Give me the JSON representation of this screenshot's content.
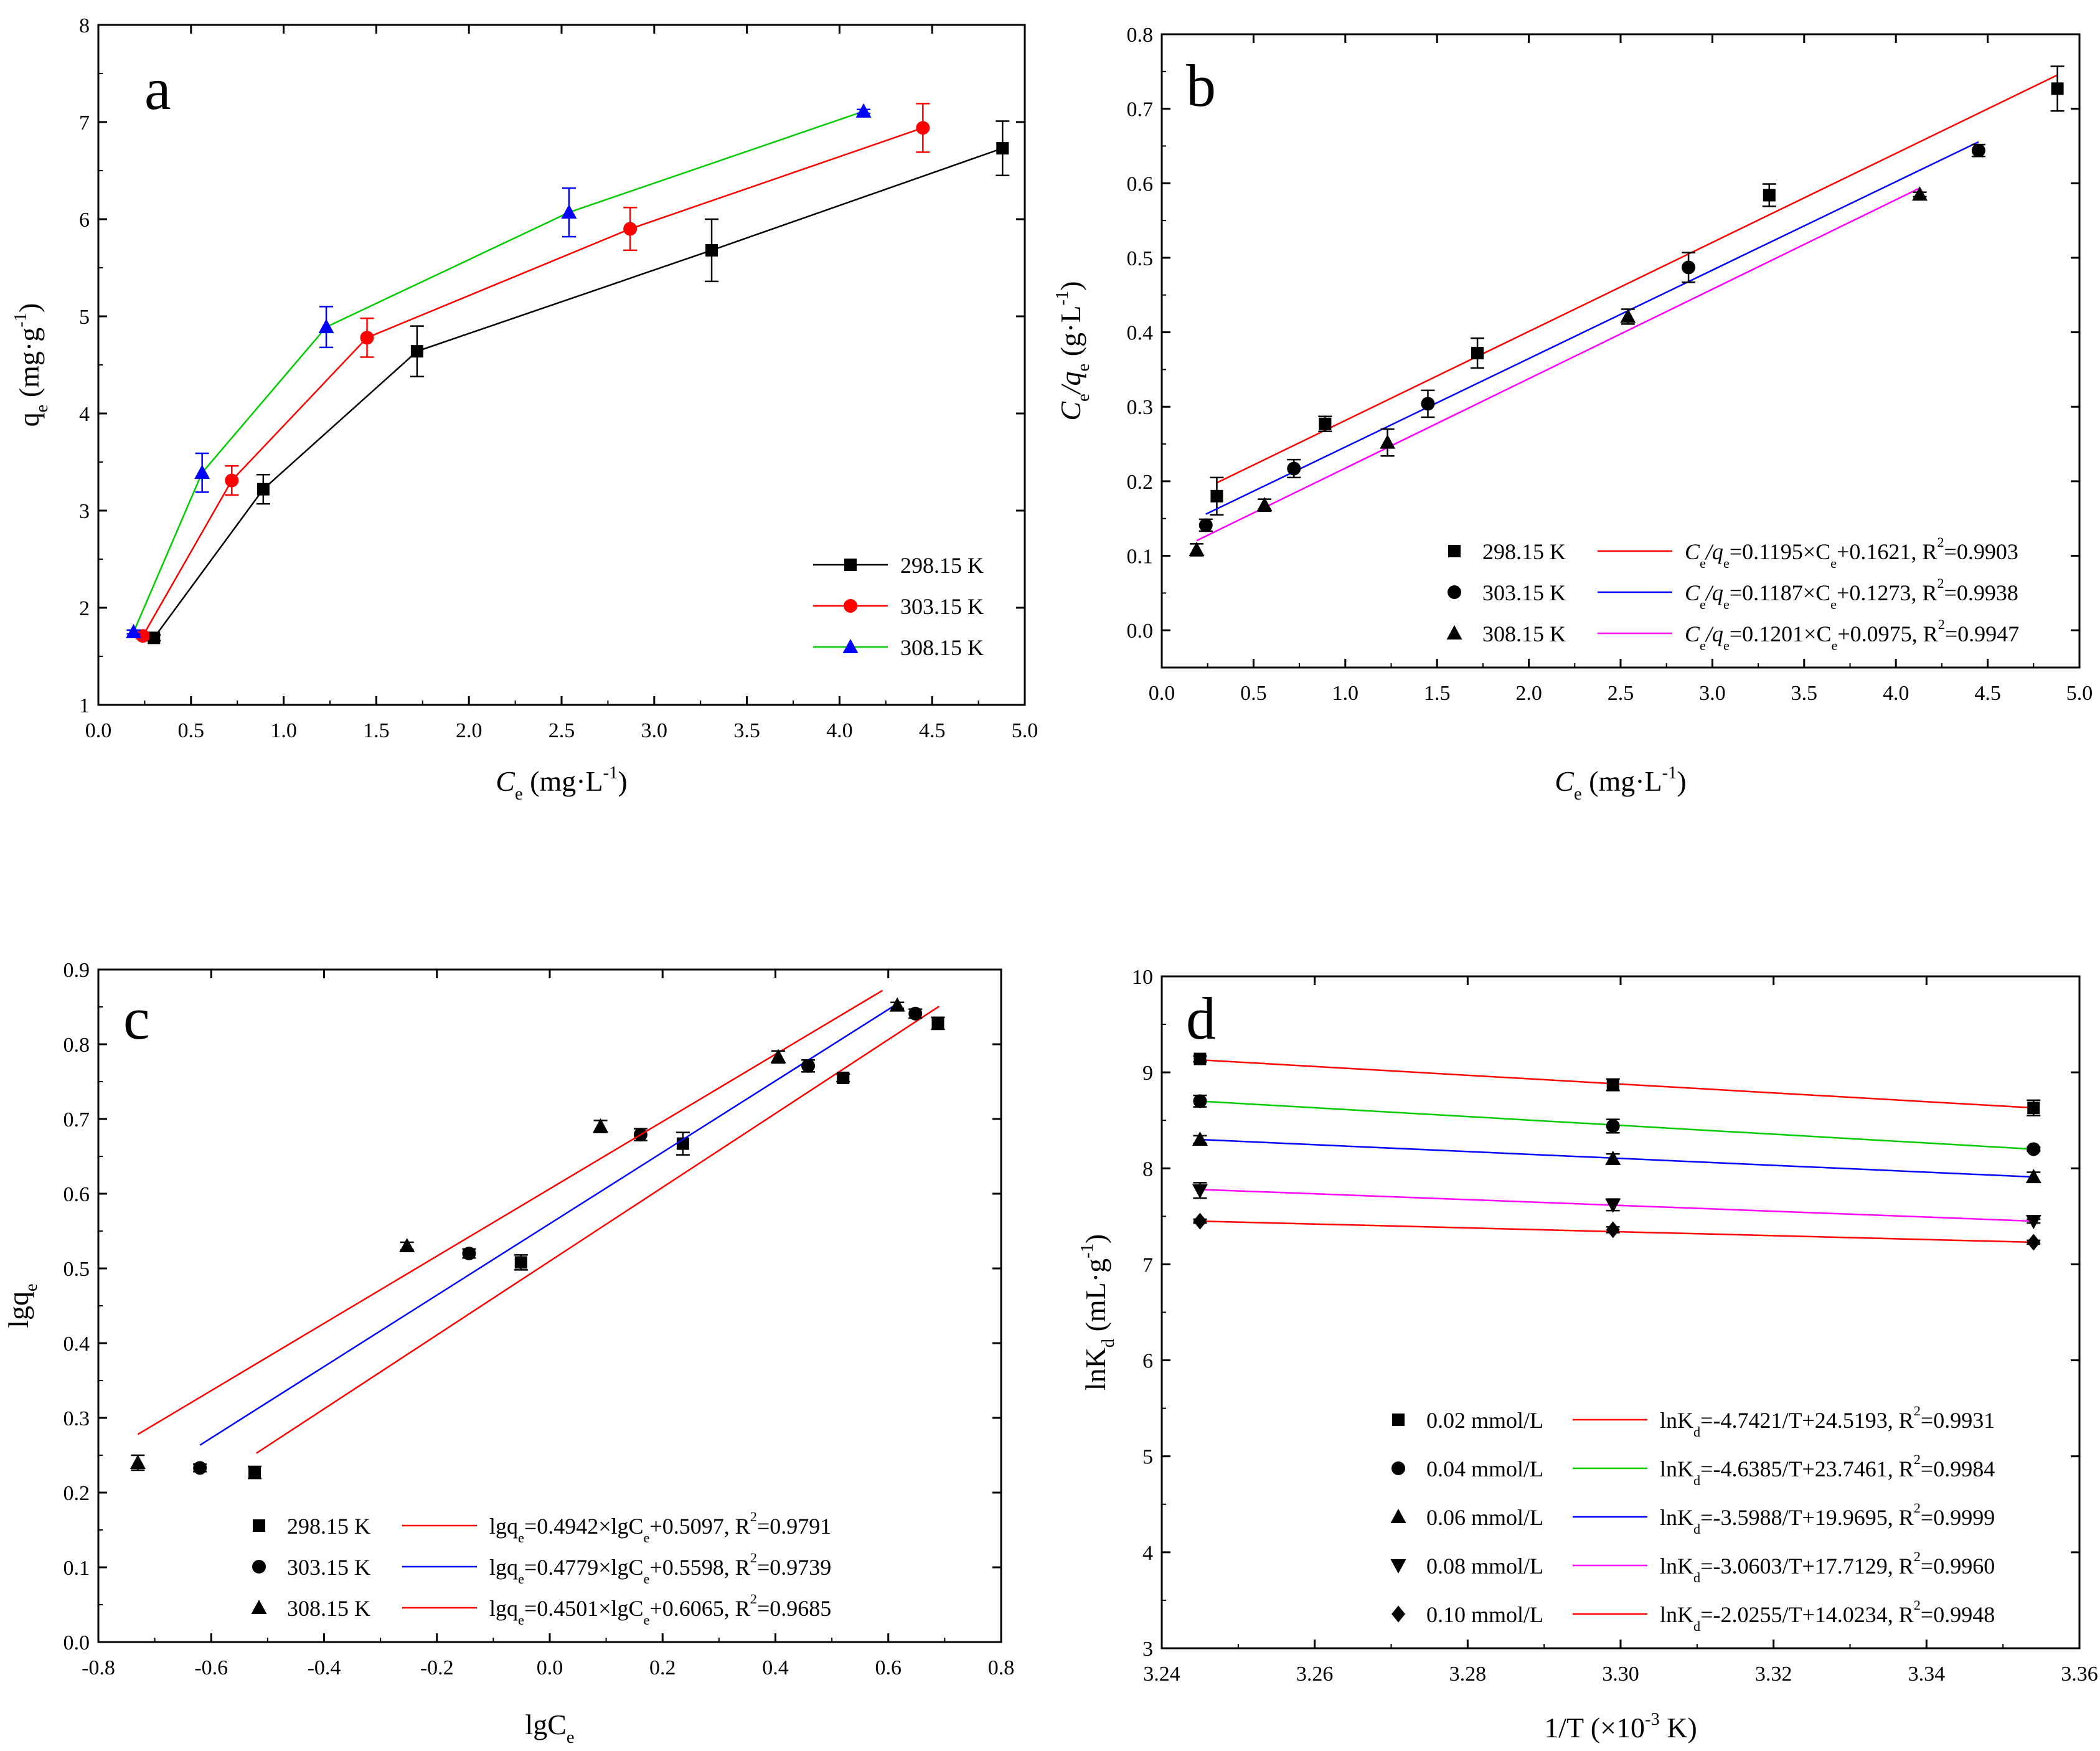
{
  "figure": {
    "colors": {
      "black": "#000000",
      "red": "#ff0000",
      "green": "#00cc00",
      "blue": "#0000ff",
      "magenta": "#ff00ff"
    }
  },
  "chart_data": [
    {
      "id": "a",
      "type": "line",
      "label": "a",
      "xlabel": {
        "main": "C",
        "sub": "e",
        "tail": " (mg·L",
        "sup": "-1",
        "close": ")"
      },
      "ylabel": {
        "main": "q",
        "sub": "e",
        "tail": " (mg·g",
        "sup": "-1",
        "close": ")"
      },
      "xlim": [
        0.0,
        5.0
      ],
      "ylim": [
        1,
        8
      ],
      "xticks": [
        0.0,
        0.5,
        1.0,
        1.5,
        2.0,
        2.5,
        3.0,
        3.5,
        4.0,
        4.5,
        5.0
      ],
      "xtick_labels": [
        "0.0",
        "0.5",
        "1.0",
        "1.5",
        "2.0",
        "2.5",
        "3.0",
        "3.5",
        "4.0",
        "4.5",
        "5.0"
      ],
      "yticks": [
        1,
        2,
        3,
        4,
        5,
        6,
        7,
        8
      ],
      "ytick_labels": [
        "1",
        "2",
        "3",
        "4",
        "5",
        "6",
        "7",
        "8"
      ],
      "legend_position": "bottom-right",
      "series": [
        {
          "name": "298.15 K",
          "color": "black",
          "marker": "square",
          "x": [
            0.3,
            0.89,
            1.72,
            3.31,
            4.88
          ],
          "y": [
            1.69,
            3.22,
            4.64,
            5.68,
            6.73
          ],
          "err": [
            0.03,
            0.15,
            0.26,
            0.32,
            0.28
          ]
        },
        {
          "name": "303.15 K",
          "color": "red",
          "marker": "circle",
          "x": [
            0.24,
            0.72,
            1.45,
            2.87,
            4.45
          ],
          "y": [
            1.71,
            3.31,
            4.78,
            5.9,
            6.94
          ],
          "err": [
            0.03,
            0.15,
            0.2,
            0.22,
            0.25
          ]
        },
        {
          "name": "308.15 K",
          "color": "blue",
          "marker": "triangle",
          "x": [
            0.19,
            0.56,
            1.23,
            2.54,
            4.13
          ],
          "y": [
            1.75,
            3.39,
            4.89,
            6.07,
            7.11
          ],
          "err": [
            0.02,
            0.2,
            0.21,
            0.25,
            0.02
          ]
        }
      ],
      "series_line_colors": [
        "black",
        "red",
        "green"
      ]
    },
    {
      "id": "b",
      "type": "scatter",
      "label": "b",
      "xlabel": {
        "main": "C",
        "sub": "e",
        "tail": " (mg·L",
        "sup": "-1",
        "close": ")"
      },
      "ylabel": {
        "main": "C",
        "sub": "e",
        "mid": "/q",
        "sub2": "e",
        "tail": " (g·L",
        "sup": "-1",
        "close": ")"
      },
      "xlim": [
        0.0,
        5.0
      ],
      "ylim": [
        -0.05,
        0.8
      ],
      "xticks": [
        0.0,
        0.5,
        1.0,
        1.5,
        2.0,
        2.5,
        3.0,
        3.5,
        4.0,
        4.5,
        5.0
      ],
      "xtick_labels": [
        "0.0",
        "0.5",
        "1.0",
        "1.5",
        "2.0",
        "2.5",
        "3.0",
        "3.5",
        "4.0",
        "4.5",
        "5.0"
      ],
      "yticks": [
        0.0,
        0.1,
        0.2,
        0.3,
        0.4,
        0.5,
        0.6,
        0.7,
        0.8
      ],
      "ytick_labels": [
        "0.0",
        "0.1",
        "0.2",
        "0.3",
        "0.4",
        "0.5",
        "0.6",
        "0.7",
        "0.8"
      ],
      "legend_position": "bottom-right",
      "series": [
        {
          "name": "298.15 K",
          "color": "black",
          "marker": "square",
          "fit_color": "red",
          "x": [
            0.3,
            0.89,
            1.72,
            3.31,
            4.88
          ],
          "y": [
            0.18,
            0.277,
            0.372,
            0.584,
            0.727
          ],
          "err": [
            0.025,
            0.01,
            0.02,
            0.015,
            0.03
          ],
          "slope": 0.1195,
          "intercept": 0.1621,
          "fit_x": [
            0.3,
            4.88
          ],
          "eq": {
            "a": "C",
            "b": "e",
            "c": "/q",
            "d": "e",
            "e": "=0.1195×C",
            "f": "e",
            "g": "+0.1621, R",
            "h": "2",
            "i": "=0.9903"
          }
        },
        {
          "name": "303.15 K",
          "color": "black",
          "marker": "circle",
          "fit_color": "blue",
          "x": [
            0.24,
            0.72,
            1.45,
            2.87,
            4.45
          ],
          "y": [
            0.141,
            0.217,
            0.304,
            0.487,
            0.644
          ],
          "err": [
            0.008,
            0.012,
            0.018,
            0.02,
            0.008
          ],
          "slope": 0.1187,
          "intercept": 0.1273,
          "fit_x": [
            0.24,
            4.45
          ],
          "eq": {
            "a": "C",
            "b": "e",
            "c": "/q",
            "d": "e",
            "e": "=0.1187×C",
            "f": "e",
            "g": "+0.1273, R",
            "h": "2",
            "i": "=0.9938"
          }
        },
        {
          "name": "308.15 K",
          "color": "black",
          "marker": "triangle",
          "fit_color": "magenta",
          "x": [
            0.19,
            0.56,
            1.23,
            2.54,
            4.13
          ],
          "y": [
            0.108,
            0.168,
            0.252,
            0.421,
            0.585
          ],
          "err": [
            0.008,
            0.008,
            0.018,
            0.01,
            0.003
          ],
          "slope": 0.1201,
          "intercept": 0.0975,
          "fit_x": [
            0.19,
            4.13
          ],
          "eq": {
            "a": "C",
            "b": "e",
            "c": "/q",
            "d": "e",
            "e": "=0.1201×C",
            "f": "e",
            "g": "+0.0975, R",
            "h": "2",
            "i": "=0.9947"
          }
        }
      ]
    },
    {
      "id": "c",
      "type": "scatter",
      "label": "c",
      "xlabel": {
        "main": "lgC",
        "sub": "e"
      },
      "ylabel": {
        "main": "lgq",
        "sub": "e"
      },
      "xlim": [
        -0.8,
        0.8
      ],
      "ylim": [
        0.0,
        0.9
      ],
      "xticks": [
        -0.8,
        -0.6,
        -0.4,
        -0.2,
        0.0,
        0.2,
        0.4,
        0.6,
        0.8
      ],
      "xtick_labels": [
        "-0.8",
        "-0.6",
        "-0.4",
        "-0.2",
        "0.0",
        "0.2",
        "0.4",
        "0.6",
        "0.8"
      ],
      "yticks": [
        0.0,
        0.1,
        0.2,
        0.3,
        0.4,
        0.5,
        0.6,
        0.7,
        0.8,
        0.9
      ],
      "ytick_labels": [
        "0.0",
        "0.1",
        "0.2",
        "0.3",
        "0.4",
        "0.5",
        "0.6",
        "0.7",
        "0.8",
        "0.9"
      ],
      "legend_position": "bottom-right",
      "series": [
        {
          "name": "298.15 K",
          "color": "black",
          "marker": "square",
          "fit_color": "red",
          "x": [
            -0.523,
            -0.051,
            0.236,
            0.52,
            0.688
          ],
          "y": [
            0.227,
            0.508,
            0.667,
            0.755,
            0.828
          ],
          "err": [
            0.008,
            0.01,
            0.015,
            0.005,
            0.008
          ],
          "slope": 0.4942,
          "intercept": 0.5097,
          "fit_x": [
            -0.52,
            0.69
          ],
          "eq": {
            "a": "lgq",
            "b": "e",
            "c": "=0.4942×lgC",
            "d": "e",
            "e": "+0.5097, R",
            "f": "2",
            "g": "=0.9791"
          }
        },
        {
          "name": "303.15 K",
          "color": "black",
          "marker": "circle",
          "fit_color": "blue",
          "x": [
            -0.62,
            -0.143,
            0.161,
            0.458,
            0.648
          ],
          "y": [
            0.233,
            0.52,
            0.679,
            0.771,
            0.841
          ],
          "err": [
            0.005,
            0.006,
            0.008,
            0.008,
            0.006
          ],
          "slope": 0.4779,
          "intercept": 0.5598,
          "fit_x": [
            -0.62,
            0.62
          ],
          "eq": {
            "a": "lgq",
            "b": "e",
            "c": "=0.4779×lgC",
            "d": "e",
            "e": "+0.5598, R",
            "f": "2",
            "g": "=0.9739"
          }
        },
        {
          "name": "308.15 K",
          "color": "black",
          "marker": "triangle",
          "fit_color": "red",
          "x": [
            -0.73,
            -0.253,
            0.09,
            0.405,
            0.616
          ],
          "y": [
            0.24,
            0.53,
            0.69,
            0.783,
            0.852
          ],
          "err": [
            0.01,
            0.005,
            0.008,
            0.008,
            0.004
          ],
          "slope": 0.4501,
          "intercept": 0.6065,
          "fit_x": [
            -0.73,
            0.59
          ],
          "eq": {
            "a": "lgq",
            "b": "e",
            "c": "=0.4501×lgC",
            "d": "e",
            "e": "+0.6065, R",
            "f": "2",
            "g": "=0.9685"
          }
        }
      ]
    },
    {
      "id": "d",
      "type": "scatter",
      "label": "d",
      "xlabel": {
        "main": "1/T (×10",
        "sup": "-3",
        "tail": " K)"
      },
      "ylabel": {
        "main": "lnK",
        "sub": "d",
        "tail": " (mL·g",
        "sup": "-1",
        "close": ")"
      },
      "xlim": [
        3.24,
        3.36
      ],
      "ylim": [
        3,
        10
      ],
      "xticks": [
        3.24,
        3.26,
        3.28,
        3.3,
        3.32,
        3.34,
        3.36
      ],
      "xtick_labels": [
        "3.24",
        "3.26",
        "3.28",
        "3.30",
        "3.32",
        "3.34",
        "3.36"
      ],
      "yticks": [
        3,
        4,
        5,
        6,
        7,
        8,
        9,
        10
      ],
      "ytick_labels": [
        "3",
        "4",
        "5",
        "6",
        "7",
        "8",
        "9",
        "10"
      ],
      "legend_position": "bottom-right",
      "series": [
        {
          "name": "0.02 mmol/L",
          "color": "black",
          "marker": "square",
          "fit_color": "red",
          "x": [
            3.245,
            3.299,
            3.354
          ],
          "y": [
            9.14,
            8.87,
            8.63
          ],
          "err": [
            0.03,
            0.06,
            0.08
          ],
          "fit_y": [
            9.13,
            8.63
          ],
          "eq": {
            "a": "lnK",
            "b": "d",
            "c": "=-4.7421/T+24.5193, R",
            "d": "2",
            "e": "=0.9931"
          }
        },
        {
          "name": "0.04 mmol/L",
          "color": "black",
          "marker": "circle",
          "fit_color": "green",
          "x": [
            3.245,
            3.299,
            3.354
          ],
          "y": [
            8.7,
            8.44,
            8.2
          ],
          "err": [
            0.06,
            0.07,
            0.02
          ],
          "fit_y": [
            8.7,
            8.2
          ],
          "eq": {
            "a": "lnK",
            "b": "d",
            "c": "=-4.6385/T+23.7461, R",
            "d": "2",
            "e": "=0.9984"
          }
        },
        {
          "name": "0.06 mmol/L",
          "color": "black",
          "marker": "triangle",
          "fit_color": "blue",
          "x": [
            3.245,
            3.299,
            3.354
          ],
          "y": [
            8.3,
            8.1,
            7.91
          ],
          "err": [
            0.04,
            0.05,
            0.05
          ],
          "fit_y": [
            8.3,
            7.91
          ],
          "eq": {
            "a": "lnK",
            "b": "d",
            "c": "=-3.5988/T+19.9695, R",
            "d": "2",
            "e": "=0.9999"
          }
        },
        {
          "name": "0.08 mmol/L",
          "color": "black",
          "marker": "triangle-down",
          "fit_color": "magenta",
          "x": [
            3.245,
            3.299,
            3.354
          ],
          "y": [
            7.77,
            7.62,
            7.45
          ],
          "err": [
            0.08,
            0.06,
            0.02
          ],
          "fit_y": [
            7.78,
            7.45
          ],
          "eq": {
            "a": "lnK",
            "b": "d",
            "c": "=-3.0603/T+17.7129, R",
            "d": "2",
            "e": "=0.9960"
          }
        },
        {
          "name": "0.10 mmol/L",
          "color": "black",
          "marker": "diamond",
          "fit_color": "red",
          "x": [
            3.245,
            3.299,
            3.354
          ],
          "y": [
            7.45,
            7.36,
            7.23
          ],
          "err": [
            0.02,
            0.03,
            0.02
          ],
          "fit_y": [
            7.45,
            7.23
          ],
          "eq": {
            "a": "lnK",
            "b": "d",
            "c": "=-2.0255/T+14.0234, R",
            "d": "2",
            "e": "=0.9948"
          }
        }
      ]
    }
  ]
}
